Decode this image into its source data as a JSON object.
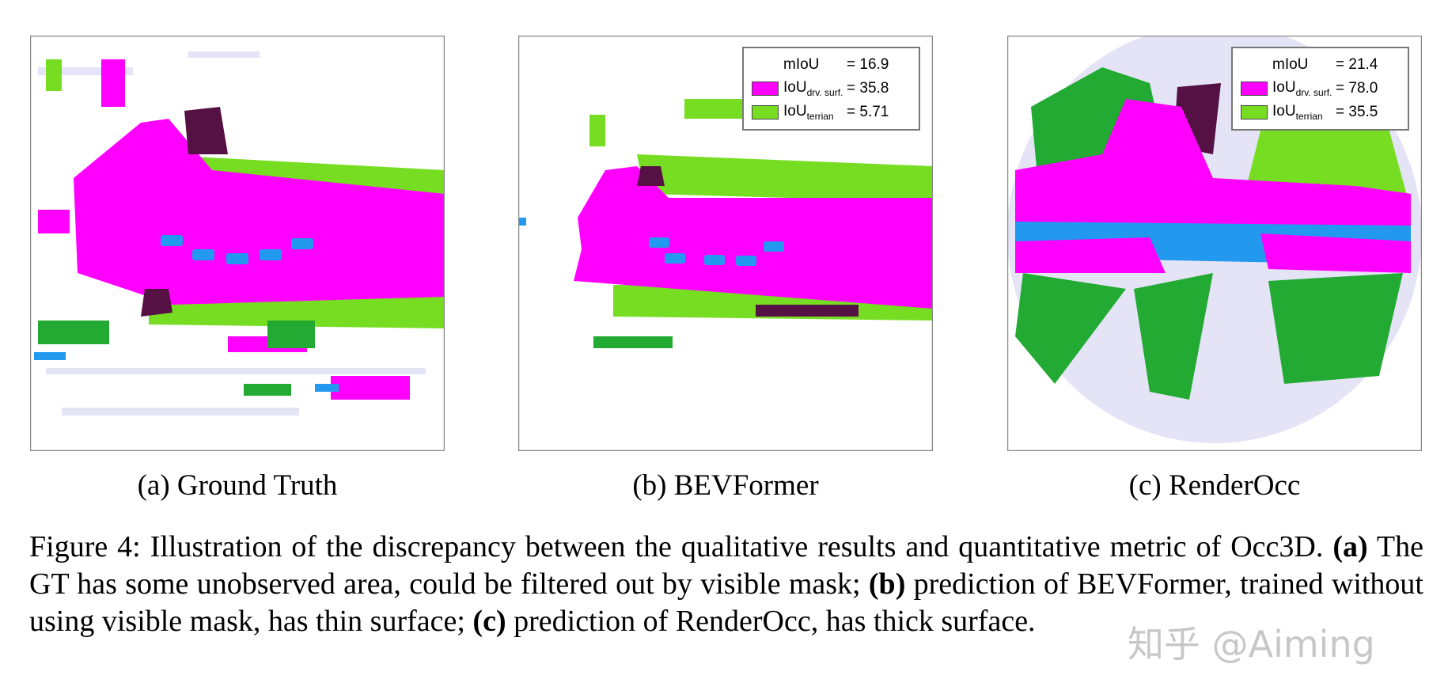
{
  "panels": [
    {
      "caption": "(a) Ground Truth"
    },
    {
      "caption": "(b) BEVFormer",
      "legend": [
        {
          "label": "mIoU",
          "value": "= 16.9"
        },
        {
          "label": "IoU",
          "subscript": "drv. surf.",
          "value": "= 35.8",
          "swatch": "#ff00ff"
        },
        {
          "label": "IoU",
          "subscript": "terrian",
          "value": "= 5.71",
          "swatch": "#77dd22"
        }
      ]
    },
    {
      "caption": "(c) RenderOcc",
      "legend": [
        {
          "label": "mIoU",
          "value": "= 21.4"
        },
        {
          "label": "IoU",
          "subscript": "drv. surf.",
          "value": "= 78.0",
          "swatch": "#ff00ff"
        },
        {
          "label": "IoU",
          "subscript": "terrian",
          "value": "= 35.5",
          "swatch": "#77dd22"
        }
      ]
    }
  ],
  "figure_caption": {
    "segments": [
      {
        "text": "Figure 4: Illustration of the discrepancy between the qualitative results and quantitative metric of Occ3D. "
      },
      {
        "text": "(a)",
        "bold": true
      },
      {
        "text": " The GT has some unobserved area, could be filtered out by visible mask; "
      },
      {
        "text": "(b)",
        "bold": true
      },
      {
        "text": " prediction of BEVFormer, trained without using visible mask, has thin surface; "
      },
      {
        "text": "(c)",
        "bold": true
      },
      {
        "text": " prediction of RenderOcc, has thick surface."
      }
    ]
  },
  "watermark": "知乎 @Aiming"
}
